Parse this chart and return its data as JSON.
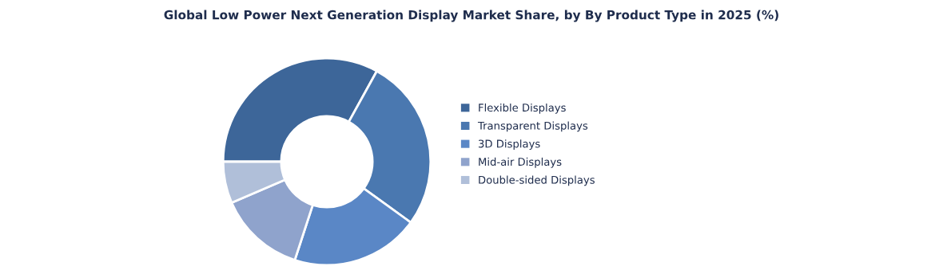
{
  "chart_data": {
    "type": "donut",
    "title": "Global Low Power Next Generation Display Market Share, by By Product Type in 2025 (%)",
    "categories": [
      "Flexible Displays",
      "Transparent Displays",
      "3D Displays",
      "Mid-air Displays",
      "Double-sided Displays"
    ],
    "values": [
      33,
      27,
      20,
      13.5,
      6.5
    ],
    "colors": [
      "#3d6699",
      "#4a78b0",
      "#5a87c6",
      "#8fa3cc",
      "#b0bfd9"
    ],
    "legend": "right"
  }
}
